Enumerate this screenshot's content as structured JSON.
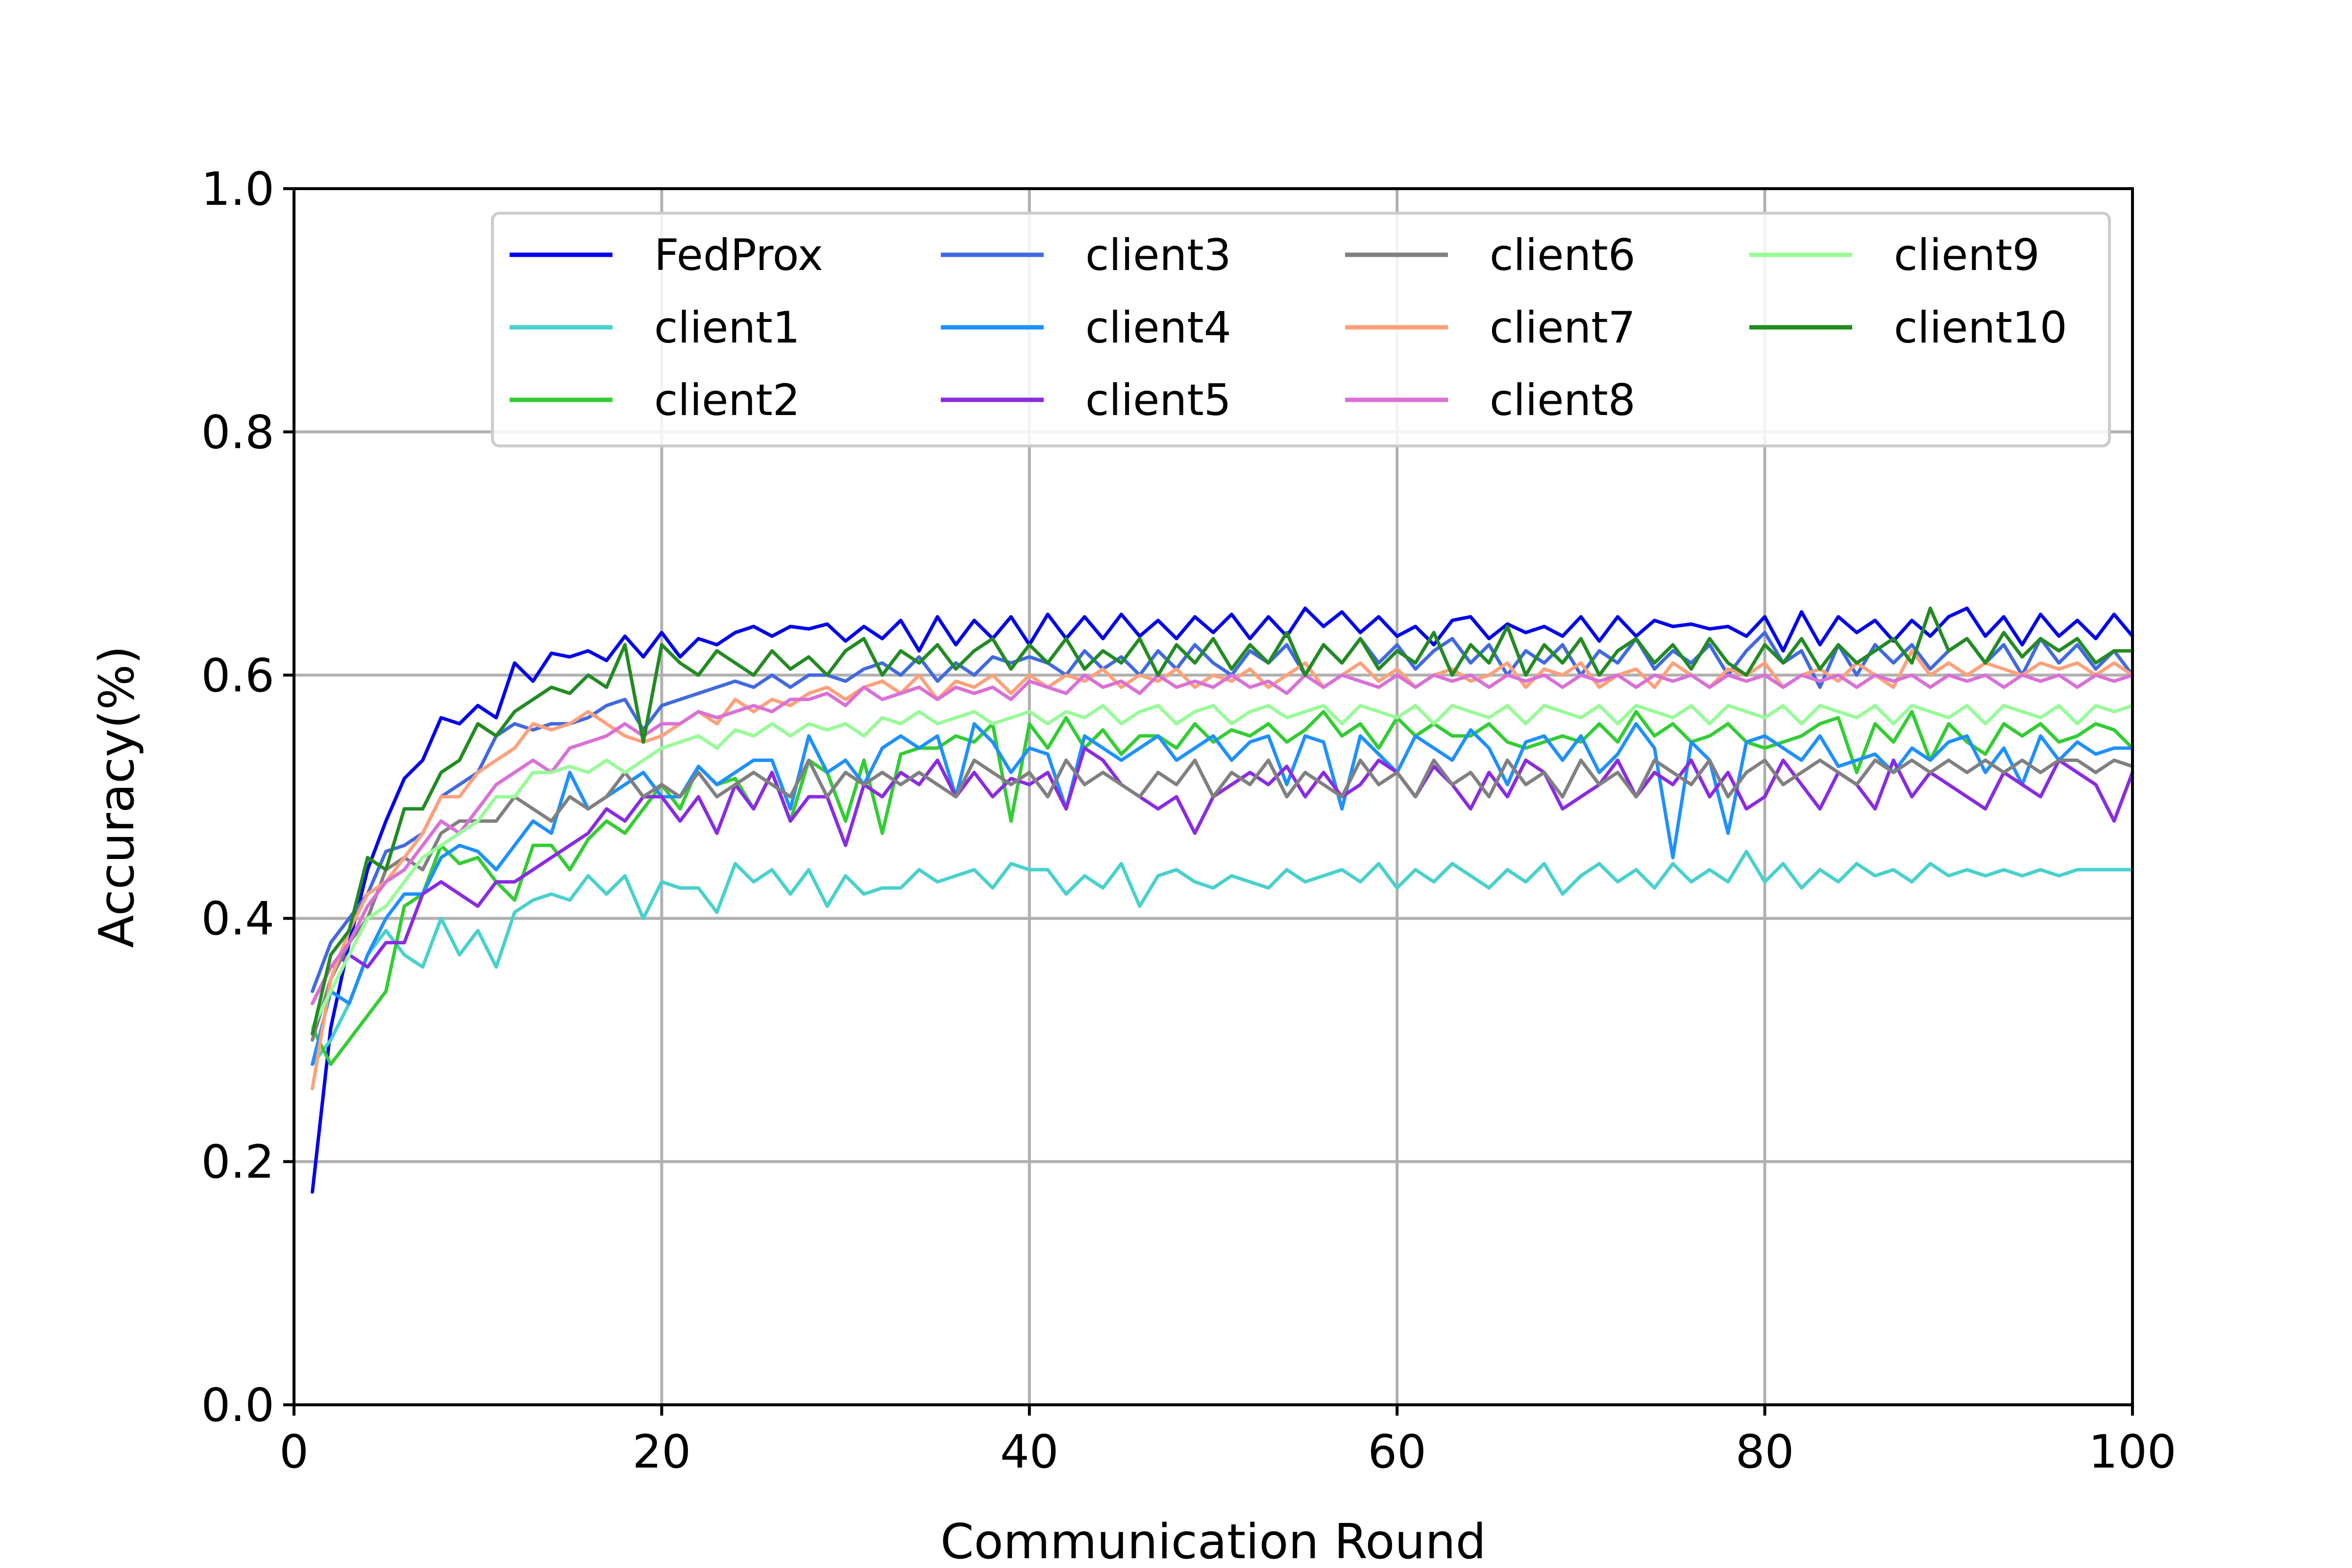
{
  "chart_data": {
    "type": "line",
    "title": "",
    "xlabel": "Communication Round",
    "ylabel": "Accuracy(%)",
    "xlim": [
      0,
      100
    ],
    "ylim": [
      0.0,
      1.0
    ],
    "xticks": [
      "0",
      "20",
      "40",
      "60",
      "80",
      "100"
    ],
    "yticks": [
      "0.0",
      "0.2",
      "0.4",
      "0.6",
      "0.8",
      "1.0"
    ],
    "grid": true,
    "legend_position": "top-right",
    "legend_columns": 4,
    "x_start": 1,
    "series": [
      {
        "name": "FedProx",
        "color": "#0000ee",
        "values": [
          0.175,
          0.31,
          0.38,
          0.44,
          0.48,
          0.515,
          0.53,
          0.565,
          0.56,
          0.575,
          0.565,
          0.61,
          0.595,
          0.618,
          0.615,
          0.62,
          0.612,
          0.632,
          0.615,
          0.635,
          0.615,
          0.63,
          0.625,
          0.635,
          0.64,
          0.632,
          0.64,
          0.638,
          0.642,
          0.628,
          0.64,
          0.63,
          0.645,
          0.62,
          0.648,
          0.625,
          0.645,
          0.63,
          0.648,
          0.625,
          0.65,
          0.63,
          0.648,
          0.63,
          0.65,
          0.632,
          0.645,
          0.63,
          0.648,
          0.635,
          0.65,
          0.63,
          0.648,
          0.632,
          0.655,
          0.64,
          0.652,
          0.635,
          0.648,
          0.632,
          0.64,
          0.625,
          0.645,
          0.648,
          0.63,
          0.642,
          0.635,
          0.64,
          0.632,
          0.648,
          0.628,
          0.648,
          0.632,
          0.645,
          0.64,
          0.642,
          0.638,
          0.64,
          0.632,
          0.648,
          0.62,
          0.652,
          0.625,
          0.648,
          0.635,
          0.645,
          0.628,
          0.645,
          0.632,
          0.648,
          0.655,
          0.632,
          0.648,
          0.625,
          0.65,
          0.632,
          0.645,
          0.63,
          0.65,
          0.632
        ]
      },
      {
        "name": "client1",
        "color": "#48d1cc",
        "values": [
          0.28,
          0.3,
          0.33,
          0.37,
          0.39,
          0.37,
          0.36,
          0.4,
          0.37,
          0.39,
          0.36,
          0.405,
          0.415,
          0.42,
          0.415,
          0.435,
          0.42,
          0.435,
          0.4,
          0.43,
          0.425,
          0.425,
          0.405,
          0.445,
          0.43,
          0.44,
          0.42,
          0.44,
          0.41,
          0.435,
          0.42,
          0.425,
          0.425,
          0.44,
          0.43,
          0.435,
          0.44,
          0.425,
          0.445,
          0.44,
          0.44,
          0.42,
          0.435,
          0.425,
          0.445,
          0.41,
          0.435,
          0.44,
          0.43,
          0.425,
          0.435,
          0.43,
          0.425,
          0.44,
          0.43,
          0.435,
          0.44,
          0.43,
          0.445,
          0.425,
          0.44,
          0.43,
          0.445,
          0.435,
          0.425,
          0.44,
          0.43,
          0.445,
          0.42,
          0.435,
          0.445,
          0.43,
          0.44,
          0.425,
          0.445,
          0.43,
          0.44,
          0.43,
          0.455,
          0.43,
          0.445,
          0.425,
          0.44,
          0.43,
          0.445,
          0.435,
          0.44,
          0.43,
          0.445,
          0.435,
          0.44,
          0.435,
          0.44,
          0.435,
          0.44,
          0.435,
          0.44,
          0.44,
          0.44,
          0.44
        ]
      },
      {
        "name": "client2",
        "color": "#32cd32",
        "values": [
          0.31,
          0.28,
          0.3,
          0.32,
          0.34,
          0.41,
          0.42,
          0.46,
          0.445,
          0.45,
          0.43,
          0.415,
          0.46,
          0.46,
          0.44,
          0.465,
          0.48,
          0.47,
          0.49,
          0.51,
          0.49,
          0.525,
          0.51,
          0.515,
          0.49,
          0.52,
          0.48,
          0.53,
          0.52,
          0.48,
          0.53,
          0.47,
          0.535,
          0.54,
          0.54,
          0.55,
          0.545,
          0.56,
          0.48,
          0.56,
          0.54,
          0.565,
          0.54,
          0.555,
          0.535,
          0.55,
          0.55,
          0.54,
          0.56,
          0.545,
          0.555,
          0.55,
          0.56,
          0.545,
          0.555,
          0.57,
          0.55,
          0.56,
          0.54,
          0.565,
          0.55,
          0.56,
          0.55,
          0.55,
          0.56,
          0.545,
          0.54,
          0.545,
          0.55,
          0.545,
          0.56,
          0.545,
          0.57,
          0.55,
          0.56,
          0.545,
          0.55,
          0.56,
          0.545,
          0.54,
          0.545,
          0.55,
          0.56,
          0.565,
          0.52,
          0.56,
          0.545,
          0.57,
          0.53,
          0.56,
          0.545,
          0.535,
          0.56,
          0.55,
          0.56,
          0.545,
          0.55,
          0.56,
          0.555,
          0.54
        ]
      },
      {
        "name": "client3",
        "color": "#4169e1",
        "values": [
          0.34,
          0.38,
          0.4,
          0.42,
          0.455,
          0.46,
          0.47,
          0.5,
          0.51,
          0.52,
          0.55,
          0.56,
          0.555,
          0.56,
          0.56,
          0.565,
          0.575,
          0.58,
          0.555,
          0.575,
          0.58,
          0.585,
          0.59,
          0.595,
          0.59,
          0.6,
          0.59,
          0.6,
          0.6,
          0.595,
          0.605,
          0.61,
          0.6,
          0.615,
          0.595,
          0.61,
          0.6,
          0.615,
          0.61,
          0.615,
          0.61,
          0.6,
          0.62,
          0.605,
          0.615,
          0.6,
          0.62,
          0.605,
          0.625,
          0.61,
          0.6,
          0.62,
          0.61,
          0.625,
          0.6,
          0.625,
          0.61,
          0.63,
          0.61,
          0.625,
          0.605,
          0.62,
          0.63,
          0.61,
          0.625,
          0.6,
          0.62,
          0.61,
          0.625,
          0.6,
          0.62,
          0.61,
          0.63,
          0.605,
          0.62,
          0.61,
          0.625,
          0.6,
          0.62,
          0.635,
          0.61,
          0.62,
          0.59,
          0.625,
          0.6,
          0.625,
          0.61,
          0.625,
          0.605,
          0.62,
          0.63,
          0.61,
          0.625,
          0.6,
          0.63,
          0.61,
          0.625,
          0.605,
          0.62,
          0.6
        ]
      },
      {
        "name": "client4",
        "color": "#1e90ff",
        "values": [
          0.28,
          0.34,
          0.33,
          0.37,
          0.4,
          0.42,
          0.42,
          0.45,
          0.46,
          0.455,
          0.44,
          0.46,
          0.48,
          0.47,
          0.52,
          0.49,
          0.5,
          0.51,
          0.52,
          0.5,
          0.5,
          0.525,
          0.51,
          0.52,
          0.53,
          0.53,
          0.49,
          0.55,
          0.52,
          0.53,
          0.51,
          0.54,
          0.55,
          0.54,
          0.55,
          0.5,
          0.56,
          0.545,
          0.52,
          0.54,
          0.535,
          0.49,
          0.55,
          0.54,
          0.53,
          0.54,
          0.55,
          0.53,
          0.54,
          0.55,
          0.53,
          0.545,
          0.55,
          0.51,
          0.55,
          0.545,
          0.49,
          0.55,
          0.535,
          0.52,
          0.55,
          0.54,
          0.53,
          0.555,
          0.54,
          0.51,
          0.545,
          0.55,
          0.53,
          0.55,
          0.52,
          0.535,
          0.56,
          0.54,
          0.45,
          0.545,
          0.53,
          0.47,
          0.545,
          0.55,
          0.54,
          0.53,
          0.55,
          0.525,
          0.53,
          0.535,
          0.52,
          0.54,
          0.53,
          0.545,
          0.55,
          0.52,
          0.54,
          0.51,
          0.55,
          0.53,
          0.545,
          0.535,
          0.54,
          0.54
        ]
      },
      {
        "name": "client5",
        "color": "#8a2be2",
        "values": [
          0.33,
          0.36,
          0.37,
          0.36,
          0.38,
          0.38,
          0.42,
          0.43,
          0.42,
          0.41,
          0.43,
          0.43,
          0.44,
          0.45,
          0.46,
          0.47,
          0.49,
          0.48,
          0.5,
          0.5,
          0.48,
          0.5,
          0.47,
          0.51,
          0.49,
          0.52,
          0.48,
          0.5,
          0.5,
          0.46,
          0.51,
          0.5,
          0.52,
          0.51,
          0.53,
          0.5,
          0.52,
          0.5,
          0.515,
          0.51,
          0.52,
          0.49,
          0.54,
          0.53,
          0.51,
          0.5,
          0.49,
          0.5,
          0.47,
          0.5,
          0.51,
          0.52,
          0.51,
          0.525,
          0.5,
          0.52,
          0.5,
          0.51,
          0.53,
          0.52,
          0.5,
          0.525,
          0.51,
          0.49,
          0.52,
          0.5,
          0.53,
          0.52,
          0.49,
          0.5,
          0.51,
          0.53,
          0.5,
          0.52,
          0.51,
          0.53,
          0.5,
          0.52,
          0.49,
          0.5,
          0.53,
          0.51,
          0.49,
          0.52,
          0.51,
          0.49,
          0.53,
          0.5,
          0.52,
          0.51,
          0.5,
          0.49,
          0.52,
          0.51,
          0.5,
          0.53,
          0.52,
          0.51,
          0.48,
          0.52
        ]
      },
      {
        "name": "client6",
        "color": "#808080",
        "values": [
          0.3,
          0.35,
          0.38,
          0.4,
          0.44,
          0.45,
          0.44,
          0.47,
          0.48,
          0.48,
          0.48,
          0.5,
          0.49,
          0.48,
          0.5,
          0.49,
          0.5,
          0.52,
          0.5,
          0.51,
          0.5,
          0.52,
          0.5,
          0.51,
          0.52,
          0.51,
          0.5,
          0.53,
          0.5,
          0.52,
          0.51,
          0.52,
          0.51,
          0.52,
          0.51,
          0.5,
          0.53,
          0.52,
          0.51,
          0.52,
          0.5,
          0.53,
          0.51,
          0.52,
          0.51,
          0.5,
          0.52,
          0.51,
          0.53,
          0.5,
          0.52,
          0.51,
          0.53,
          0.5,
          0.52,
          0.51,
          0.5,
          0.53,
          0.51,
          0.52,
          0.5,
          0.53,
          0.51,
          0.52,
          0.5,
          0.53,
          0.51,
          0.52,
          0.5,
          0.53,
          0.51,
          0.52,
          0.5,
          0.53,
          0.52,
          0.51,
          0.53,
          0.5,
          0.52,
          0.53,
          0.51,
          0.52,
          0.53,
          0.52,
          0.51,
          0.53,
          0.52,
          0.53,
          0.52,
          0.53,
          0.52,
          0.53,
          0.52,
          0.53,
          0.52,
          0.53,
          0.53,
          0.52,
          0.53,
          0.525
        ]
      },
      {
        "name": "client7",
        "color": "#ffa07a",
        "values": [
          0.26,
          0.35,
          0.39,
          0.42,
          0.43,
          0.45,
          0.47,
          0.5,
          0.5,
          0.52,
          0.53,
          0.54,
          0.56,
          0.555,
          0.56,
          0.57,
          0.56,
          0.55,
          0.545,
          0.55,
          0.56,
          0.57,
          0.56,
          0.58,
          0.57,
          0.58,
          0.575,
          0.585,
          0.59,
          0.58,
          0.59,
          0.595,
          0.585,
          0.6,
          0.58,
          0.595,
          0.59,
          0.6,
          0.585,
          0.6,
          0.59,
          0.6,
          0.595,
          0.605,
          0.59,
          0.6,
          0.595,
          0.605,
          0.59,
          0.6,
          0.595,
          0.605,
          0.59,
          0.6,
          0.61,
          0.59,
          0.6,
          0.61,
          0.595,
          0.605,
          0.59,
          0.6,
          0.605,
          0.595,
          0.6,
          0.61,
          0.59,
          0.605,
          0.6,
          0.61,
          0.59,
          0.6,
          0.605,
          0.59,
          0.61,
          0.6,
          0.59,
          0.605,
          0.6,
          0.61,
          0.59,
          0.6,
          0.605,
          0.595,
          0.61,
          0.6,
          0.59,
          0.62,
          0.6,
          0.61,
          0.6,
          0.61,
          0.605,
          0.6,
          0.61,
          0.605,
          0.61,
          0.6,
          0.61,
          0.6
        ]
      },
      {
        "name": "client8",
        "color": "#da70d6",
        "values": [
          0.33,
          0.36,
          0.38,
          0.41,
          0.43,
          0.44,
          0.46,
          0.48,
          0.47,
          0.49,
          0.51,
          0.52,
          0.53,
          0.52,
          0.54,
          0.545,
          0.55,
          0.56,
          0.55,
          0.56,
          0.56,
          0.57,
          0.565,
          0.57,
          0.575,
          0.57,
          0.58,
          0.58,
          0.585,
          0.575,
          0.59,
          0.58,
          0.585,
          0.59,
          0.58,
          0.59,
          0.585,
          0.59,
          0.58,
          0.595,
          0.59,
          0.585,
          0.6,
          0.59,
          0.595,
          0.585,
          0.6,
          0.59,
          0.595,
          0.59,
          0.6,
          0.59,
          0.595,
          0.585,
          0.6,
          0.59,
          0.6,
          0.595,
          0.59,
          0.6,
          0.59,
          0.6,
          0.595,
          0.6,
          0.59,
          0.6,
          0.595,
          0.6,
          0.59,
          0.6,
          0.595,
          0.6,
          0.59,
          0.6,
          0.595,
          0.6,
          0.59,
          0.6,
          0.595,
          0.6,
          0.59,
          0.6,
          0.595,
          0.6,
          0.59,
          0.6,
          0.595,
          0.6,
          0.59,
          0.6,
          0.595,
          0.6,
          0.59,
          0.6,
          0.595,
          0.6,
          0.59,
          0.6,
          0.595,
          0.6
        ]
      },
      {
        "name": "client9",
        "color": "#98fb98",
        "values": [
          0.31,
          0.34,
          0.37,
          0.4,
          0.41,
          0.43,
          0.45,
          0.46,
          0.47,
          0.48,
          0.5,
          0.5,
          0.52,
          0.52,
          0.525,
          0.52,
          0.53,
          0.52,
          0.53,
          0.54,
          0.545,
          0.55,
          0.54,
          0.555,
          0.55,
          0.56,
          0.55,
          0.56,
          0.555,
          0.56,
          0.55,
          0.565,
          0.56,
          0.57,
          0.56,
          0.565,
          0.57,
          0.56,
          0.565,
          0.57,
          0.56,
          0.57,
          0.565,
          0.575,
          0.56,
          0.57,
          0.575,
          0.56,
          0.57,
          0.575,
          0.56,
          0.57,
          0.575,
          0.565,
          0.57,
          0.575,
          0.56,
          0.575,
          0.57,
          0.565,
          0.575,
          0.56,
          0.575,
          0.57,
          0.565,
          0.575,
          0.56,
          0.575,
          0.57,
          0.565,
          0.575,
          0.56,
          0.575,
          0.57,
          0.565,
          0.575,
          0.56,
          0.575,
          0.57,
          0.565,
          0.575,
          0.56,
          0.575,
          0.57,
          0.565,
          0.575,
          0.56,
          0.575,
          0.57,
          0.565,
          0.575,
          0.56,
          0.575,
          0.57,
          0.565,
          0.575,
          0.56,
          0.575,
          0.57,
          0.575
        ]
      },
      {
        "name": "client10",
        "color": "#228b22",
        "values": [
          0.305,
          0.37,
          0.39,
          0.45,
          0.44,
          0.49,
          0.49,
          0.52,
          0.53,
          0.56,
          0.55,
          0.57,
          0.58,
          0.59,
          0.585,
          0.6,
          0.59,
          0.625,
          0.545,
          0.625,
          0.61,
          0.6,
          0.62,
          0.61,
          0.6,
          0.62,
          0.605,
          0.615,
          0.6,
          0.62,
          0.63,
          0.6,
          0.62,
          0.61,
          0.625,
          0.605,
          0.62,
          0.63,
          0.605,
          0.625,
          0.61,
          0.63,
          0.605,
          0.62,
          0.61,
          0.63,
          0.6,
          0.625,
          0.61,
          0.63,
          0.605,
          0.625,
          0.61,
          0.635,
          0.6,
          0.625,
          0.61,
          0.63,
          0.605,
          0.62,
          0.61,
          0.635,
          0.6,
          0.625,
          0.61,
          0.64,
          0.6,
          0.625,
          0.61,
          0.63,
          0.6,
          0.62,
          0.63,
          0.61,
          0.625,
          0.605,
          0.63,
          0.61,
          0.6,
          0.625,
          0.61,
          0.63,
          0.605,
          0.625,
          0.61,
          0.62,
          0.63,
          0.61,
          0.655,
          0.62,
          0.63,
          0.61,
          0.635,
          0.615,
          0.63,
          0.62,
          0.63,
          0.61,
          0.62,
          0.62
        ]
      }
    ]
  }
}
